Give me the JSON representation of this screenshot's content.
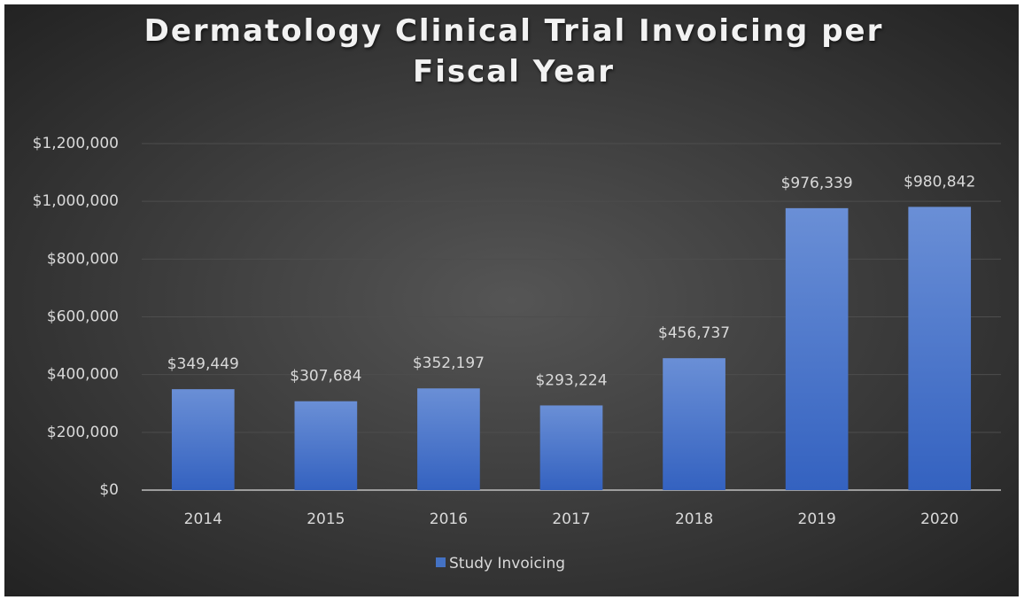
{
  "chart_data": {
    "type": "bar",
    "title": "Dermatology Clinical Trial Invoicing per Fiscal Year",
    "categories": [
      "2014",
      "2015",
      "2016",
      "2017",
      "2018",
      "2019",
      "2020"
    ],
    "series": [
      {
        "name": "Study Invoicing",
        "color": "#4472c4",
        "values": [
          349449,
          307684,
          352197,
          293224,
          456737,
          976339,
          980842
        ],
        "value_labels": [
          "$349,449",
          "$307,684",
          "$352,197",
          "$293,224",
          "$456,737",
          "$976,339",
          "$980,842"
        ]
      }
    ],
    "ylim": [
      0,
      1200000
    ],
    "yticks": [
      {
        "value": 0,
        "label": "$0"
      },
      {
        "value": 200000,
        "label": "$200,000"
      },
      {
        "value": 400000,
        "label": "$400,000"
      },
      {
        "value": 600000,
        "label": "$600,000"
      },
      {
        "value": 800000,
        "label": "$800,000"
      },
      {
        "value": 1000000,
        "label": "$1,000,000"
      },
      {
        "value": 1200000,
        "label": "$1,200,000"
      }
    ],
    "grid": true,
    "legend": "bottom"
  }
}
